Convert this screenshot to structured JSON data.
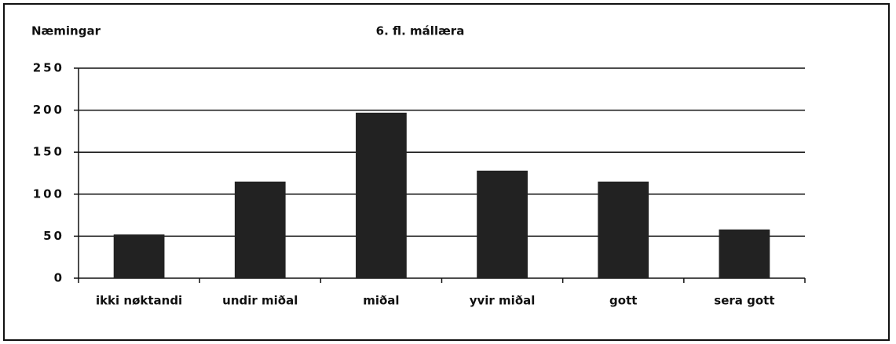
{
  "chart_data": {
    "type": "bar",
    "title": "6. fl. mállæra",
    "y_label": "Næmingar",
    "categories": [
      "ikki nøktandi",
      "undir miðal",
      "miðal",
      "yvir miðal",
      "gott",
      "sera gott"
    ],
    "values": [
      52,
      115,
      197,
      128,
      115,
      58
    ],
    "color": "#222222",
    "ylim": [
      0,
      250
    ],
    "yticks": [
      0,
      50,
      100,
      150,
      200,
      250
    ],
    "grid": true
  }
}
